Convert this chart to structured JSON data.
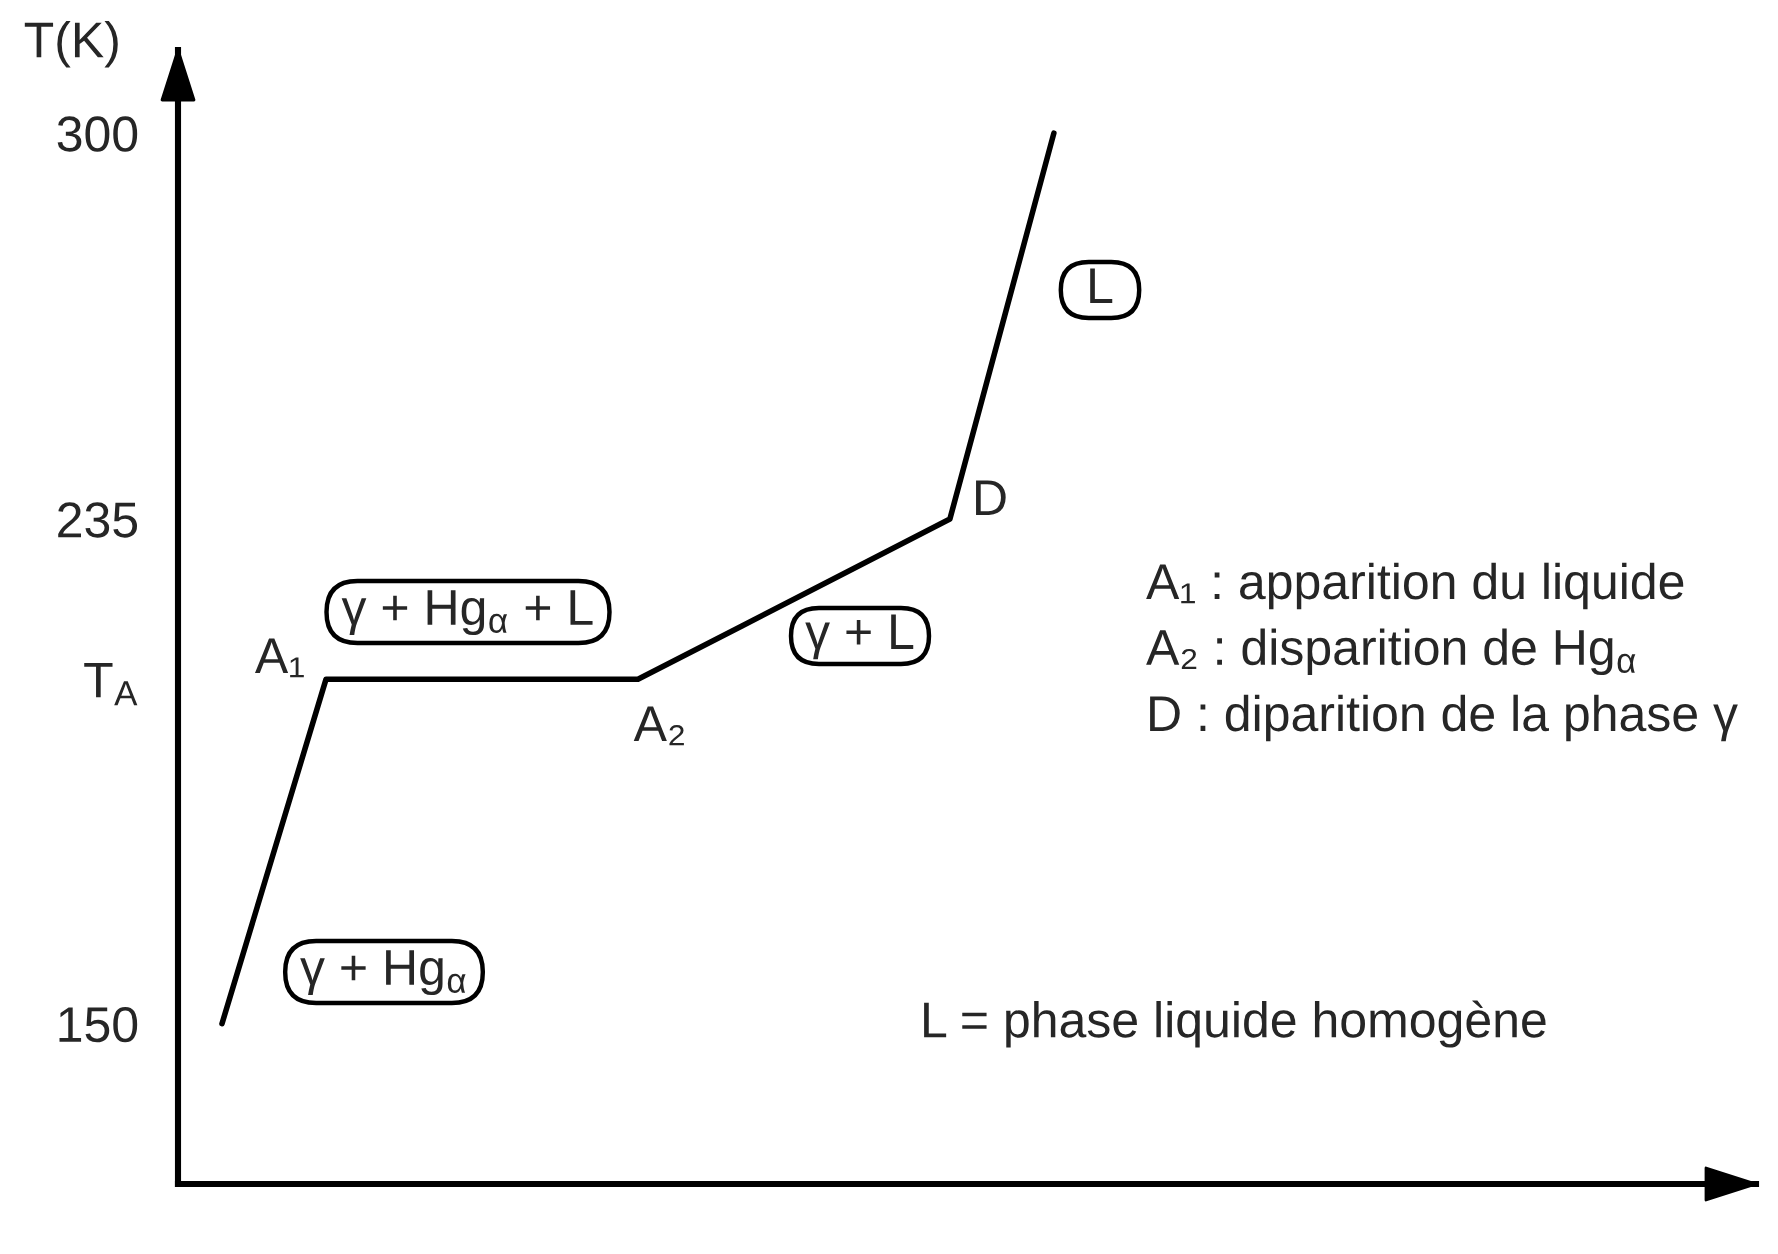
{
  "chart_data": {
    "type": "line",
    "ylabel": "T(K)",
    "categories": [
      null,
      null,
      null,
      null,
      null,
      null,
      null,
      null,
      null
    ],
    "series": [
      {
        "color": "#000000",
        "values": [
          150,
          208,
          208,
          208,
          208,
          217,
          226,
          235,
          300
        ]
      }
    ],
    "ylim": [
      123,
      314
    ],
    "yticks": [
      150,
      {
        "value": 208,
        "label": "T$_{A}$"
      },
      235,
      300
    ],
    "tick_labels": "y",
    "grid": false,
    "marker": "none",
    "line_style": "solid",
    "annotations": [
      "A₁",
      "A₂",
      "D",
      "γ + Hg$_{α}$",
      "γ + Hg$_{α}$ + L",
      "γ + L",
      "L",
      "A₁ : apparition du liquide",
      "A₂ : disparition de Hg$_{α}$",
      "D : diparition de la phase γ",
      "L = phase liquide homogène"
    ]
  }
}
